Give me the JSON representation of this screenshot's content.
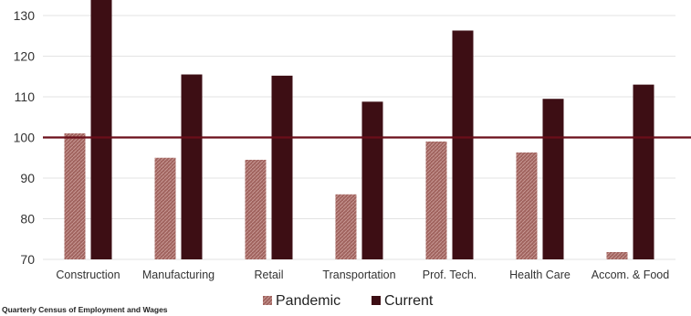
{
  "chart_data": {
    "type": "bar",
    "categories": [
      "Construction",
      "Manufacturing",
      "Retail",
      "Transportation",
      "Prof. Tech.",
      "Health Care",
      "Accom. & Food"
    ],
    "series": [
      {
        "name": "Pandemic",
        "values": [
          101,
          95,
          94.5,
          86,
          99,
          96.3,
          71.8
        ]
      },
      {
        "name": "Current",
        "values": [
          134,
          115.5,
          115.2,
          108.8,
          126.3,
          109.5,
          113
        ]
      }
    ],
    "yticks": [
      70,
      80,
      90,
      100,
      110,
      120,
      130
    ],
    "ylim": [
      70,
      135
    ],
    "reference_line": 100,
    "grid": "horizontal",
    "legend_position": "bottom-center",
    "colors": {
      "Pandemic": "#a0635e",
      "Current": "#3d0e14",
      "reference_line": "#6b0f1a",
      "grid": "#e3e3e3"
    }
  },
  "footer": {
    "source_note": "Quarterly Census of Employment and Wages"
  }
}
